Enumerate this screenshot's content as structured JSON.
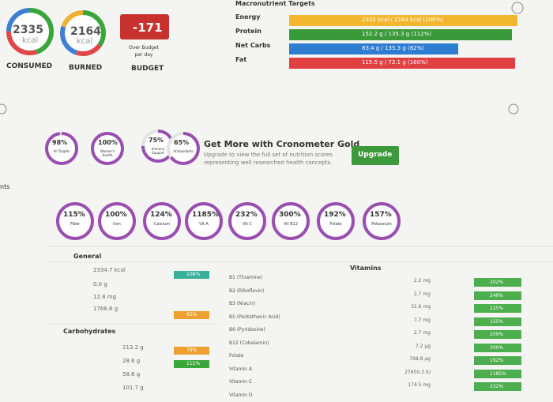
{
  "summary": [
    {
      "value": "2335",
      "unit": "kcal",
      "label": "CONSUMED"
    },
    {
      "value": "2164",
      "unit": "kcal",
      "label": "BURNED"
    },
    {
      "value": "-171",
      "note": "Over Budget per day",
      "label": "BUDGET"
    }
  ],
  "macros": {
    "title": "Macronutrient Targets",
    "rows": [
      {
        "name": "Energy",
        "text": "2335 kcal / 2164 kcal (108%)"
      },
      {
        "name": "Protein",
        "text": "152.2 g / 135.3 g (112%)"
      },
      {
        "name": "Net Carbs",
        "text": "83.4 g / 135.3 g (62%)"
      },
      {
        "name": "Fat",
        "text": "115.5 g / 72.1 g (160%)"
      }
    ]
  },
  "scores": [
    {
      "value": "98%",
      "label": "All Targets"
    },
    {
      "value": "100%",
      "label": "Women's Health"
    },
    {
      "value": "75%",
      "label": "Immune Support"
    },
    {
      "value": "65%",
      "label": "Antioxidants"
    }
  ],
  "gold": {
    "title": "Get More with Cronometer Gold",
    "text": "Upgrade to view the full set of nutrition scores representing well researched health concepts.",
    "button": "Upgrade"
  },
  "side_label": "nts",
  "targets": [
    {
      "value": "115%",
      "label": "Fiber"
    },
    {
      "value": "100%",
      "label": "Iron"
    },
    {
      "value": "124%",
      "label": "Calcium"
    },
    {
      "value": "1185%",
      "label": "Vit A"
    },
    {
      "value": "232%",
      "label": "Vit C"
    },
    {
      "value": "300%",
      "label": "Vit B12"
    },
    {
      "value": "192%",
      "label": "Folate"
    },
    {
      "value": "157%",
      "label": "Potassium"
    }
  ],
  "general": {
    "title": "General",
    "rows": [
      "2334.7 kcal",
      "0.0 g",
      "12.8 mg",
      "1766.6 g"
    ],
    "bars": [
      "108%",
      "65%"
    ]
  },
  "carbs": {
    "title": "Carbohydrates",
    "rows": [
      "213.2 g",
      "28.6 g",
      "58.6 g",
      "101.7 g"
    ],
    "bars": [
      "79%",
      "115%"
    ]
  },
  "vitamins": {
    "title": "Vitamins",
    "rows": [
      {
        "name": "B1 (Thiamine)",
        "amount": "2.2 mg",
        "percent": "202%"
      },
      {
        "name": "B2 (Riboflavin)",
        "amount": "2.7 mg",
        "percent": "249%"
      },
      {
        "name": "B3 (Niacin)",
        "amount": "31.6 mg",
        "percent": "225%"
      },
      {
        "name": "B5 (Pantothenic Acid)",
        "amount": "7.7 mg",
        "percent": "155%"
      },
      {
        "name": "B6 (Pyridoxine)",
        "amount": "2.7 mg",
        "percent": "209%"
      },
      {
        "name": "B12 (Cobalamin)",
        "amount": "7.2 µg",
        "percent": "300%"
      },
      {
        "name": "Folate",
        "amount": "768.8 µg",
        "percent": "192%"
      },
      {
        "name": "Vitamin A",
        "amount": "27650.3 IU",
        "percent": "1185%"
      },
      {
        "name": "Vitamin C",
        "amount": "174.5 mg",
        "percent": "232%"
      },
      {
        "name": "Vitamin D"
      }
    ]
  }
}
